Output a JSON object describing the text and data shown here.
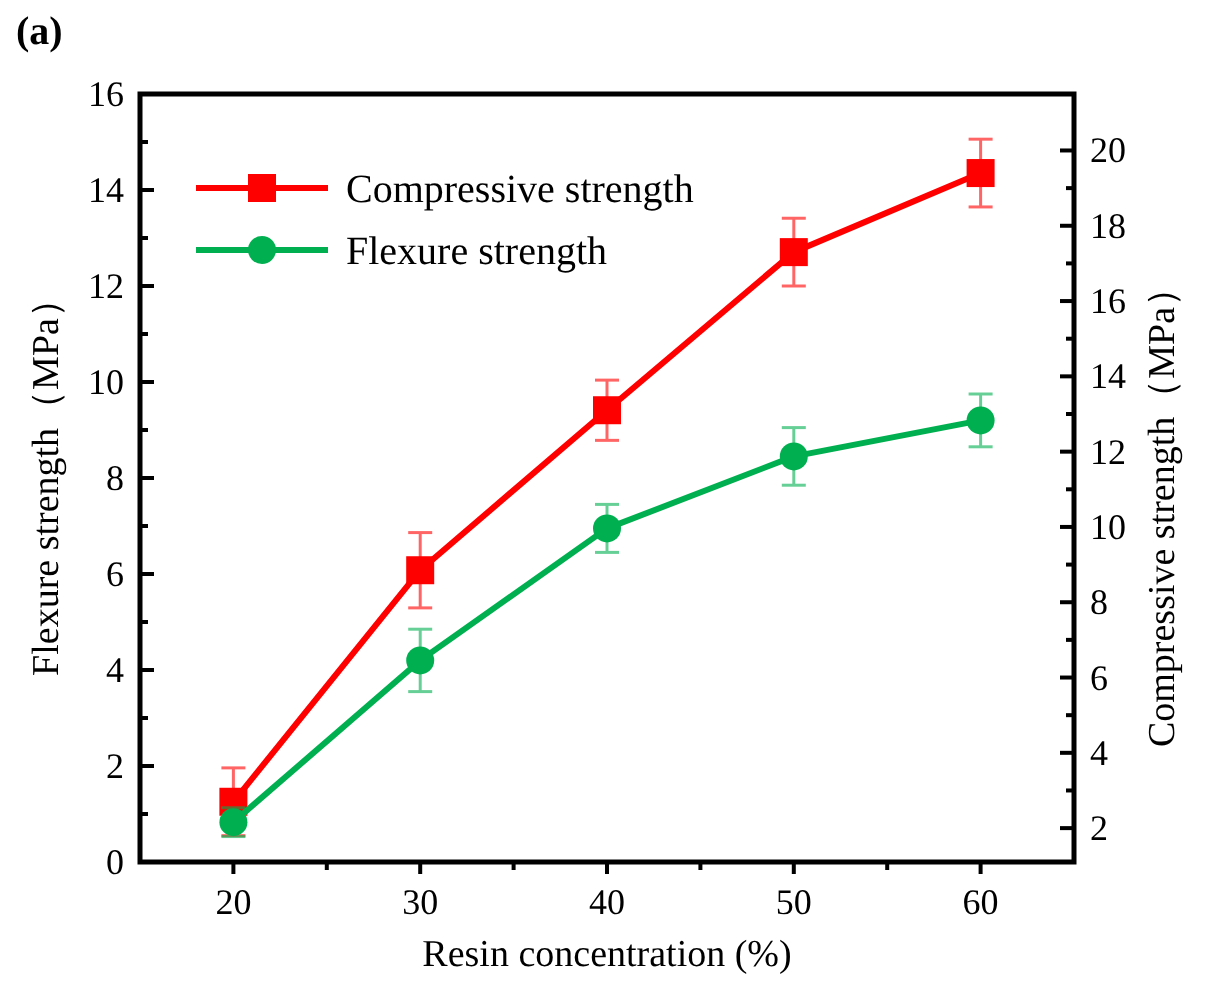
{
  "chart_data": {
    "type": "line",
    "title": "(a)",
    "xlabel": "Resin concentration (%)",
    "ylabel": "Flexure strength（MPa）",
    "y2label": "Compressive strength（MPa）",
    "x": [
      20,
      30,
      40,
      50,
      60
    ],
    "series": [
      {
        "name": "Compressive strength",
        "color": "#ff0000",
        "axis": "y2",
        "marker": "square",
        "values": [
          2.7,
          8.85,
          13.1,
          17.3,
          19.4
        ],
        "errors": [
          0.9,
          1.0,
          0.8,
          0.9,
          0.9
        ]
      },
      {
        "name": "Flexure strength",
        "color": "#00b050",
        "marker": "circle",
        "values": [
          0.83,
          4.2,
          6.95,
          8.45,
          9.2
        ],
        "errors": [
          0.3,
          0.65,
          0.5,
          0.6,
          0.55
        ]
      }
    ],
    "xlim": [
      15,
      65
    ],
    "xticks": [
      20,
      30,
      40,
      50,
      60
    ],
    "ylim": [
      0,
      16
    ],
    "yticks": [
      0,
      2,
      4,
      6,
      8,
      10,
      12,
      14,
      16
    ],
    "y2lim": [
      1.1,
      21.5
    ],
    "y2ticks": [
      2,
      4,
      6,
      8,
      10,
      12,
      14,
      16,
      18,
      20
    ],
    "legend": "top left",
    "grid": false,
    "line_style": "solid"
  }
}
